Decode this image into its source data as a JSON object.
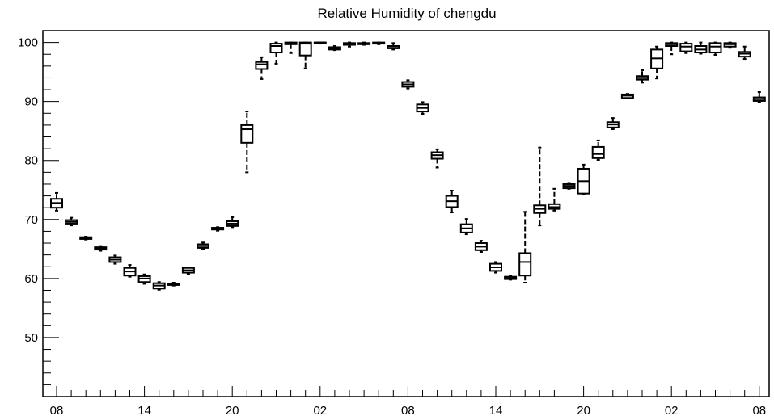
{
  "chart_data": {
    "type": "boxplot",
    "title": "Relative Humidity of chengdu",
    "xlabel": "",
    "ylabel": "",
    "ylim": [
      40,
      102
    ],
    "y_ticks": [
      50,
      60,
      70,
      80,
      90,
      100
    ],
    "x_tick_labels": [
      {
        "index": 0,
        "label": "08"
      },
      {
        "index": 6,
        "label": "14"
      },
      {
        "index": 12,
        "label": "20"
      },
      {
        "index": 18,
        "label": "02"
      },
      {
        "index": 24,
        "label": "08"
      },
      {
        "index": 30,
        "label": "14"
      },
      {
        "index": 36,
        "label": "20"
      },
      {
        "index": 42,
        "label": "02"
      },
      {
        "index": 48,
        "label": "08"
      }
    ],
    "grid": false,
    "boxes": [
      {
        "index": 0,
        "min": 71.5,
        "q1": 72.0,
        "median": 72.8,
        "q3": 73.5,
        "max": 74.5
      },
      {
        "index": 1,
        "min": 69.0,
        "q1": 69.3,
        "median": 69.6,
        "q3": 69.9,
        "max": 70.3
      },
      {
        "index": 2,
        "min": 66.6,
        "q1": 66.7,
        "median": 66.9,
        "q3": 67.0,
        "max": 67.1
      },
      {
        "index": 3,
        "min": 64.7,
        "q1": 64.9,
        "median": 65.1,
        "q3": 65.3,
        "max": 65.5
      },
      {
        "index": 4,
        "min": 62.5,
        "q1": 62.8,
        "median": 63.2,
        "q3": 63.6,
        "max": 63.9
      },
      {
        "index": 5,
        "min": 60.3,
        "q1": 60.5,
        "median": 61.2,
        "q3": 61.8,
        "max": 62.3
      },
      {
        "index": 6,
        "min": 59.1,
        "q1": 59.4,
        "median": 60.0,
        "q3": 60.4,
        "max": 60.7
      },
      {
        "index": 7,
        "min": 58.1,
        "q1": 58.3,
        "median": 58.8,
        "q3": 59.2,
        "max": 59.4
      },
      {
        "index": 8,
        "min": 58.8,
        "q1": 58.9,
        "median": 59.0,
        "q3": 59.1,
        "max": 59.3
      },
      {
        "index": 9,
        "min": 60.8,
        "q1": 61.0,
        "median": 61.4,
        "q3": 61.8,
        "max": 61.9
      },
      {
        "index": 10,
        "min": 65.0,
        "q1": 65.2,
        "median": 65.5,
        "q3": 65.8,
        "max": 66.1
      },
      {
        "index": 11,
        "min": 68.1,
        "q1": 68.3,
        "median": 68.4,
        "q3": 68.6,
        "max": 68.7
      },
      {
        "index": 12,
        "min": 68.7,
        "q1": 68.9,
        "median": 69.3,
        "q3": 69.7,
        "max": 70.4
      },
      {
        "index": 13,
        "min": 78.0,
        "q1": 83.0,
        "median": 85.3,
        "q3": 86.0,
        "max": 88.3
      },
      {
        "index": 14,
        "min": 93.8,
        "q1": 95.5,
        "median": 96.3,
        "q3": 96.7,
        "max": 97.5
      },
      {
        "index": 15,
        "min": 96.4,
        "q1": 98.3,
        "median": 99.4,
        "q3": 99.8,
        "max": 100.0
      },
      {
        "index": 16,
        "min": 98.2,
        "q1": 99.7,
        "median": 99.9,
        "q3": 100.0,
        "max": 100.0
      },
      {
        "index": 17,
        "min": 95.6,
        "q1": 97.8,
        "median": 99.8,
        "q3": 100.0,
        "max": 100.0
      },
      {
        "index": 18,
        "min": 99.8,
        "q1": 99.9,
        "median": 100.0,
        "q3": 100.0,
        "max": 100.0
      },
      {
        "index": 19,
        "min": 98.7,
        "q1": 98.8,
        "median": 99.0,
        "q3": 99.2,
        "max": 99.4
      },
      {
        "index": 20,
        "min": 99.3,
        "q1": 99.6,
        "median": 99.8,
        "q3": 99.9,
        "max": 100.0
      },
      {
        "index": 21,
        "min": 99.6,
        "q1": 99.7,
        "median": 99.8,
        "q3": 99.9,
        "max": 100.0
      },
      {
        "index": 22,
        "min": 99.7,
        "q1": 99.8,
        "median": 99.9,
        "q3": 100.0,
        "max": 100.0
      },
      {
        "index": 23,
        "min": 98.8,
        "q1": 99.0,
        "median": 99.3,
        "q3": 99.4,
        "max": 99.9
      },
      {
        "index": 24,
        "min": 92.2,
        "q1": 92.5,
        "median": 92.9,
        "q3": 93.3,
        "max": 93.6
      },
      {
        "index": 25,
        "min": 87.9,
        "q1": 88.3,
        "median": 88.9,
        "q3": 89.5,
        "max": 89.9
      },
      {
        "index": 26,
        "min": 78.8,
        "q1": 80.3,
        "median": 80.9,
        "q3": 81.4,
        "max": 81.9
      },
      {
        "index": 27,
        "min": 71.2,
        "q1": 72.1,
        "median": 73.1,
        "q3": 74.0,
        "max": 74.9
      },
      {
        "index": 28,
        "min": 67.5,
        "q1": 67.8,
        "median": 68.5,
        "q3": 69.2,
        "max": 70.1
      },
      {
        "index": 29,
        "min": 64.5,
        "q1": 64.8,
        "median": 65.4,
        "q3": 66.0,
        "max": 66.4
      },
      {
        "index": 30,
        "min": 61.0,
        "q1": 61.3,
        "median": 61.9,
        "q3": 62.5,
        "max": 62.8
      },
      {
        "index": 31,
        "min": 59.8,
        "q1": 59.9,
        "median": 60.1,
        "q3": 60.3,
        "max": 60.5
      },
      {
        "index": 32,
        "min": 59.3,
        "q1": 60.5,
        "median": 62.8,
        "q3": 64.3,
        "max": 71.3
      },
      {
        "index": 33,
        "min": 69.0,
        "q1": 71.1,
        "median": 71.8,
        "q3": 72.4,
        "max": 82.2
      },
      {
        "index": 34,
        "min": 71.5,
        "q1": 71.8,
        "median": 72.1,
        "q3": 72.6,
        "max": 75.2
      },
      {
        "index": 35,
        "min": 75.2,
        "q1": 75.3,
        "median": 75.7,
        "q3": 76.0,
        "max": 76.2
      },
      {
        "index": 36,
        "min": 74.3,
        "q1": 74.4,
        "median": 76.5,
        "q3": 78.6,
        "max": 79.3
      },
      {
        "index": 37,
        "min": 80.1,
        "q1": 80.4,
        "median": 81.1,
        "q3": 82.3,
        "max": 83.4
      },
      {
        "index": 38,
        "min": 85.3,
        "q1": 85.6,
        "median": 86.1,
        "q3": 86.5,
        "max": 87.2
      },
      {
        "index": 39,
        "min": 90.5,
        "q1": 90.6,
        "median": 91.0,
        "q3": 91.2,
        "max": 91.3
      },
      {
        "index": 40,
        "min": 93.2,
        "q1": 93.7,
        "median": 94.0,
        "q3": 94.3,
        "max": 95.3
      },
      {
        "index": 41,
        "min": 93.9,
        "q1": 95.6,
        "median": 97.3,
        "q3": 98.8,
        "max": 99.3
      },
      {
        "index": 42,
        "min": 98.0,
        "q1": 99.4,
        "median": 99.7,
        "q3": 99.9,
        "max": 100.0
      },
      {
        "index": 43,
        "min": 98.2,
        "q1": 98.5,
        "median": 99.3,
        "q3": 99.8,
        "max": 100.0
      },
      {
        "index": 44,
        "min": 98.1,
        "q1": 98.3,
        "median": 98.8,
        "q3": 99.4,
        "max": 100.0
      },
      {
        "index": 45,
        "min": 97.9,
        "q1": 98.3,
        "median": 99.3,
        "q3": 99.9,
        "max": 100.0
      },
      {
        "index": 46,
        "min": 99.1,
        "q1": 99.3,
        "median": 99.7,
        "q3": 99.9,
        "max": 100.0
      },
      {
        "index": 47,
        "min": 97.2,
        "q1": 97.6,
        "median": 98.1,
        "q3": 98.4,
        "max": 99.3
      },
      {
        "index": 48,
        "min": 89.9,
        "q1": 90.1,
        "median": 90.4,
        "q3": 90.7,
        "max": 91.6
      }
    ]
  }
}
